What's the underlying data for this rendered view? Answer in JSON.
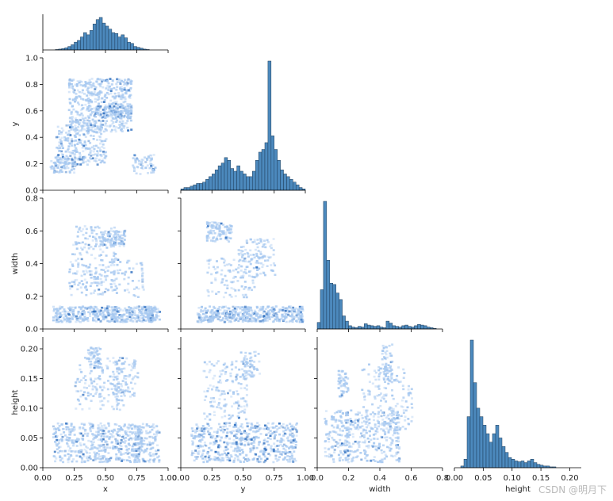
{
  "chart_data": {
    "type": "pairplot",
    "variables": [
      "x",
      "y",
      "width",
      "height"
    ],
    "diagonal_type": "histogram",
    "offdiagonal_type": "heatmap",
    "colors": {
      "bar_fill": "#4c89bd",
      "bar_edge": "#1f3d5a",
      "heat_light": "#a6c8f0",
      "heat_dark": "#2f6fbf"
    },
    "axes": {
      "x": {
        "range": [
          0,
          1
        ],
        "ticks": [
          "0.00",
          "0.25",
          "0.50",
          "0.75",
          "1.00"
        ],
        "yticks": [
          "0.0",
          "0.2",
          "0.4",
          "0.6",
          "0.8",
          "1.0"
        ]
      },
      "y": {
        "range": [
          0,
          1
        ],
        "ticks": [
          "0.00",
          "0.25",
          "0.50",
          "0.75",
          "1.00"
        ]
      },
      "width": {
        "range": [
          0,
          0.8
        ],
        "ticks": [
          "0.0",
          "0.2",
          "0.4",
          "0.6",
          "0.8"
        ]
      },
      "height": {
        "range": [
          0,
          0.22
        ],
        "ticks": [
          "0.00",
          "0.05",
          "0.10",
          "0.15",
          "0.20"
        ]
      }
    },
    "histograms": {
      "x": {
        "bin_start": 0.0,
        "bin_width": 0.025,
        "counts": [
          0,
          0,
          0,
          0,
          1,
          2,
          3,
          5,
          8,
          12,
          18,
          22,
          30,
          40,
          35,
          45,
          60,
          70,
          75,
          62,
          55,
          48,
          40,
          38,
          30,
          35,
          28,
          18,
          15,
          8,
          6,
          4,
          2,
          1,
          0,
          0,
          0,
          0,
          0,
          0
        ]
      },
      "y": {
        "bin_start": 0.0,
        "bin_width": 0.025,
        "counts": [
          1,
          2,
          2,
          3,
          4,
          5,
          5,
          6,
          8,
          10,
          12,
          15,
          18,
          20,
          24,
          22,
          16,
          14,
          18,
          14,
          12,
          10,
          10,
          14,
          22,
          28,
          30,
          35,
          95,
          40,
          30,
          22,
          15,
          12,
          10,
          8,
          6,
          4,
          2,
          1
        ]
      },
      "width": {
        "bin_start": 0.0,
        "bin_width": 0.02,
        "counts": [
          10,
          60,
          195,
          105,
          70,
          68,
          55,
          45,
          20,
          12,
          5,
          3,
          2,
          4,
          3,
          8,
          6,
          5,
          4,
          5,
          3,
          2,
          12,
          9,
          5,
          4,
          3,
          5,
          6,
          4,
          3,
          5,
          7,
          6,
          5,
          3,
          2,
          1,
          0,
          0
        ]
      },
      "height": {
        "bin_start": 0.0,
        "bin_width": 0.0055,
        "counts": [
          0,
          0,
          2,
          10,
          60,
          150,
          100,
          70,
          60,
          50,
          40,
          30,
          40,
          50,
          35,
          25,
          18,
          12,
          10,
          8,
          7,
          8,
          6,
          8,
          10,
          6,
          4,
          3,
          2,
          2,
          1,
          1,
          0,
          0,
          0,
          0,
          0,
          0,
          0,
          0
        ]
      }
    }
  },
  "watermark": "CSDN @明月下"
}
